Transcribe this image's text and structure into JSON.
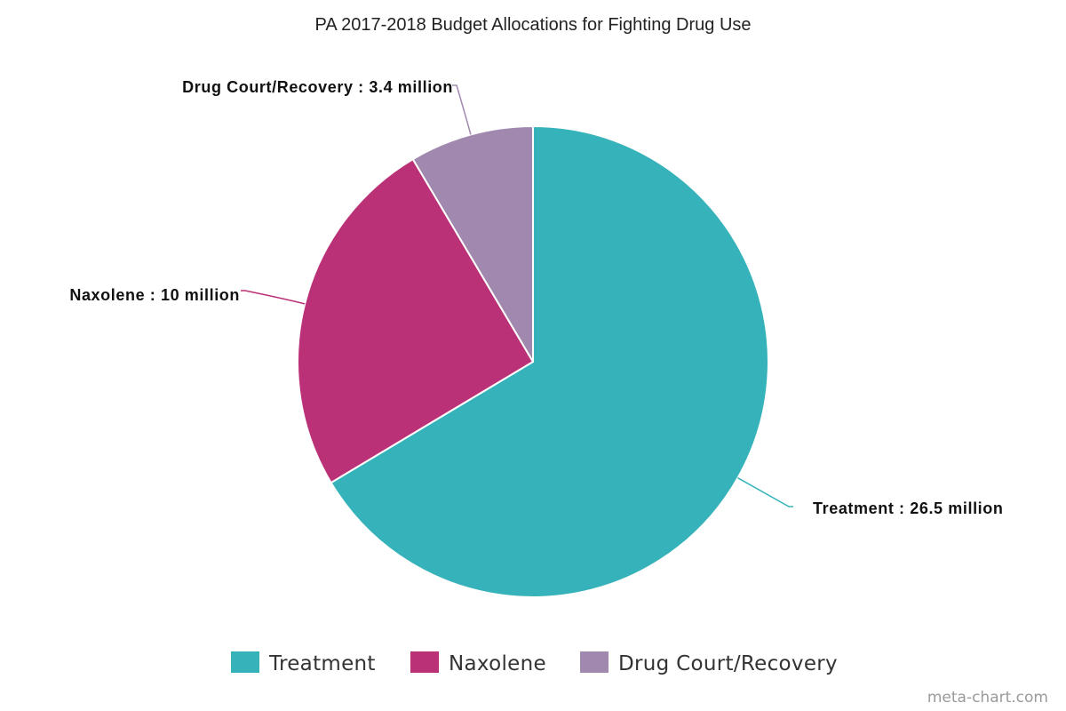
{
  "chart_data": {
    "type": "pie",
    "title": "PA 2017-2018 Budget Allocations for Fighting Drug Use",
    "unit": "million",
    "slices": [
      {
        "name": "Treatment",
        "value": 26.5,
        "label": "Treatment : 26.5 million",
        "color": "#36b3ba"
      },
      {
        "name": "Naxolene",
        "value": 10,
        "label": "Naxolene : 10 million",
        "color": "#bb3178"
      },
      {
        "name": "Drug Court/Recovery",
        "value": 3.4,
        "label": "Drug Court/Recovery : 3.4 million",
        "color": "#a088ae"
      }
    ],
    "legend_position": "bottom",
    "start_angle": "12 o'clock, clockwise"
  },
  "credit": "meta-chart.com"
}
